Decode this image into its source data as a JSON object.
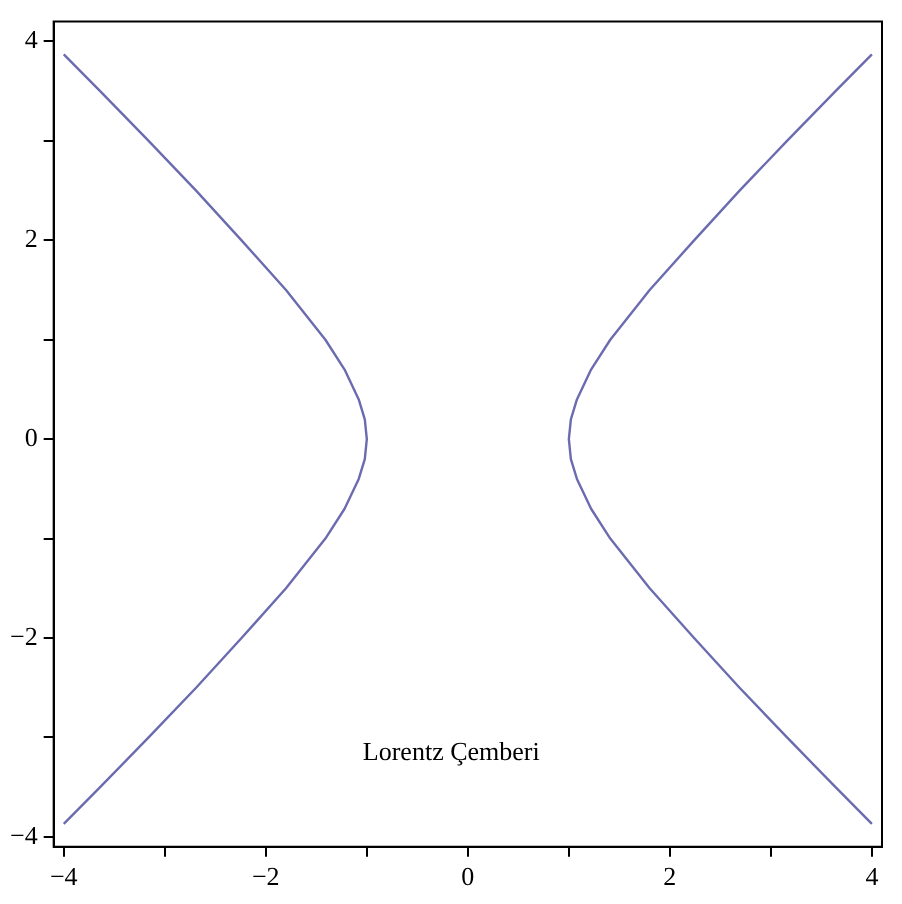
{
  "chart_data": {
    "type": "line",
    "xlim": [
      -4.1,
      4.1
    ],
    "ylim": [
      -4.1,
      4.2
    ],
    "xticks": [
      {
        "value": -4,
        "label": "−4"
      },
      {
        "value": -3,
        "label": null
      },
      {
        "value": -2,
        "label": "−2"
      },
      {
        "value": -1,
        "label": null
      },
      0,
      {
        "value": 1,
        "label": null
      },
      2,
      {
        "value": 3,
        "label": null
      },
      4
    ],
    "yticks": [
      {
        "value": -4,
        "label": "−4"
      },
      {
        "value": -3,
        "label": null
      },
      {
        "value": -2,
        "label": "−2"
      },
      {
        "value": -1,
        "label": null
      },
      0,
      {
        "value": 1,
        "label": null
      },
      2,
      {
        "value": 3,
        "label": null
      },
      4
    ],
    "series": [
      {
        "color": "#6b6bb0",
        "x": [
          -4.0,
          -3.64,
          -3.16,
          -2.69,
          -2.24,
          -1.8,
          -1.41,
          -1.22,
          -1.08,
          -1.02,
          -1.0,
          -1.02,
          -1.08,
          -1.22,
          -1.41,
          -1.8,
          -2.24,
          -2.69,
          -3.16,
          -3.64,
          -4.0
        ],
        "values": [
          3.87,
          3.5,
          3.0,
          2.5,
          2.0,
          1.5,
          1.0,
          0.7,
          0.4,
          0.2,
          0.0,
          -0.2,
          -0.4,
          -0.7,
          -1.0,
          -1.5,
          -2.0,
          -2.5,
          -3.0,
          -3.5,
          -3.87
        ]
      },
      {
        "color": "#6b6bb0",
        "x": [
          4.0,
          3.64,
          3.16,
          2.69,
          2.24,
          1.8,
          1.41,
          1.22,
          1.08,
          1.02,
          1.0,
          1.02,
          1.08,
          1.22,
          1.41,
          1.8,
          2.24,
          2.69,
          3.16,
          3.64,
          4.0
        ],
        "values": [
          3.87,
          3.5,
          3.0,
          2.5,
          2.0,
          1.5,
          1.0,
          0.7,
          0.4,
          0.2,
          0.0,
          -0.2,
          -0.4,
          -0.7,
          -1.0,
          -1.5,
          -2.0,
          -2.5,
          -3.0,
          -3.5,
          -3.87
        ]
      }
    ],
    "annotations": [
      "Lorentz Çemberi"
    ],
    "grid": false,
    "legend": false,
    "marker": "none",
    "line_style": "solid"
  }
}
